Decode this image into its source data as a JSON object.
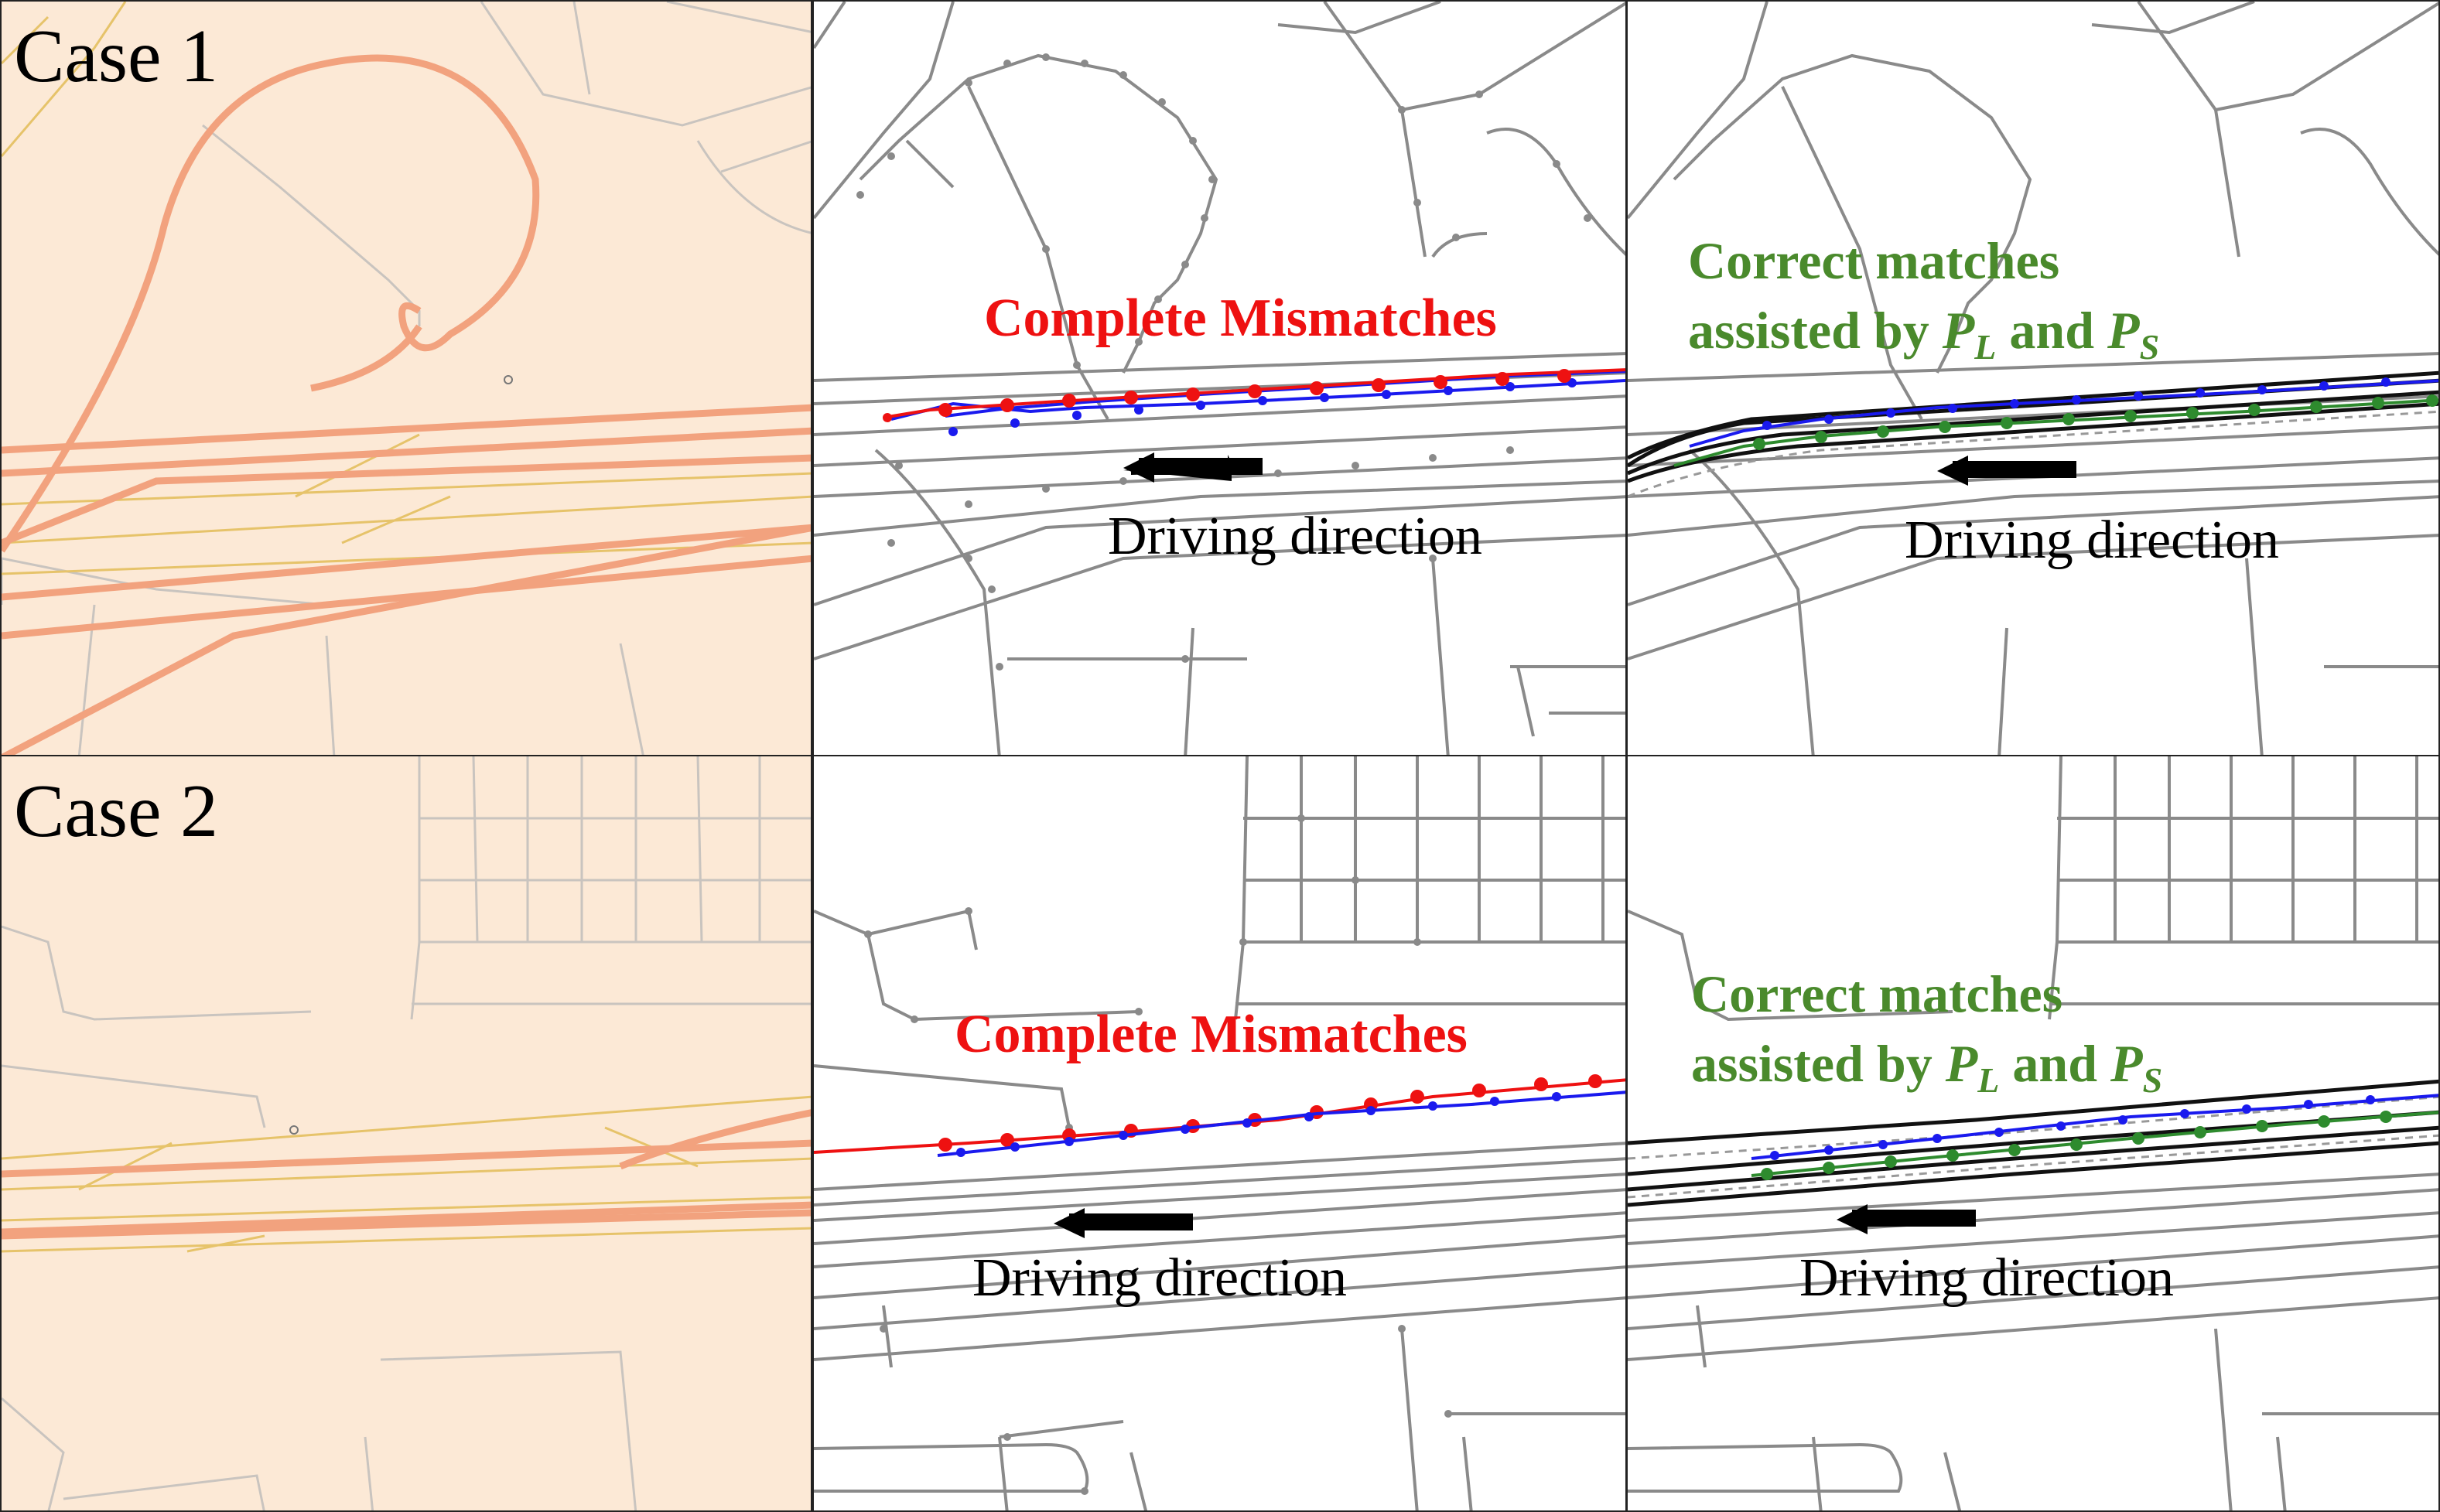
{
  "cases": [
    {
      "label": "Case 1",
      "mismatch_label": "Complete Mismatches",
      "correct_line1": "Correct matches",
      "correct_line2_prefix": "assisted by ",
      "correct_pl": "P",
      "correct_pl_sub": "L",
      "correct_and": " and ",
      "correct_ps": "P",
      "correct_ps_sub": "S",
      "direction_label": "Driving direction",
      "direction_label_right": "Driving direction"
    },
    {
      "label": "Case 2",
      "mismatch_label": "Complete Mismatches",
      "correct_line1": "Correct matches",
      "correct_line2_prefix": "assisted by ",
      "correct_pl": "P",
      "correct_pl_sub": "L",
      "correct_and": " and ",
      "correct_ps": "P",
      "correct_ps_sub": "S",
      "direction_label": "Driving direction",
      "direction_label_right": "Driving direction"
    }
  ],
  "colors": {
    "map_background": "#fce9d6",
    "highway": "#f2a27e",
    "secondary_road": "#e6c36a",
    "minor_road": "#c9c4bf",
    "network_road": "#8a8a8a",
    "mismatch": "#ee1111",
    "gps_track": "#1a1aee",
    "correct_match": "#2e8b2e",
    "candidates": "#111111",
    "correct_text": "#4a8a2c"
  }
}
